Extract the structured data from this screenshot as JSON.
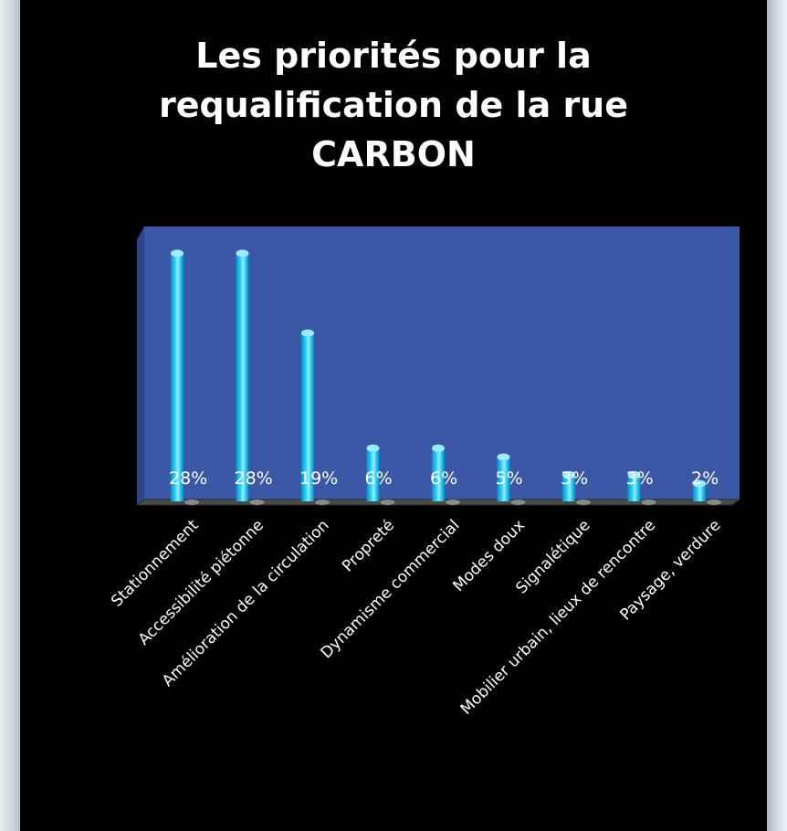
{
  "chart_data": {
    "type": "bar",
    "title_lines": [
      "Les priorités pour la",
      "requalification de la rue",
      "CARBON"
    ],
    "categories": [
      "Stationnement",
      "Accessibilité piétonne",
      "Amélioration de la circulation",
      "Propreté",
      "Dynamisme commercial",
      "Modes doux",
      "Signalétique",
      "Mobilier urbain, lieux de rencontre",
      "Paysage, verdure"
    ],
    "values": [
      28,
      28,
      19,
      6,
      6,
      5,
      3,
      3,
      2
    ],
    "value_labels": [
      "28%",
      "28%",
      "19%",
      "6%",
      "6%",
      "5%",
      "3%",
      "3%",
      "2%"
    ],
    "ylim": [
      0,
      30
    ],
    "grid": false,
    "legend": "none"
  },
  "colors": {
    "background": "#000000",
    "plot_wall": "#3a58a6",
    "plot_wall_side": "#2e4688",
    "bar": "#17c4ef",
    "bar_highlight": "#9cecff",
    "floor": "#4a4a4a",
    "text": "#ffffff"
  }
}
